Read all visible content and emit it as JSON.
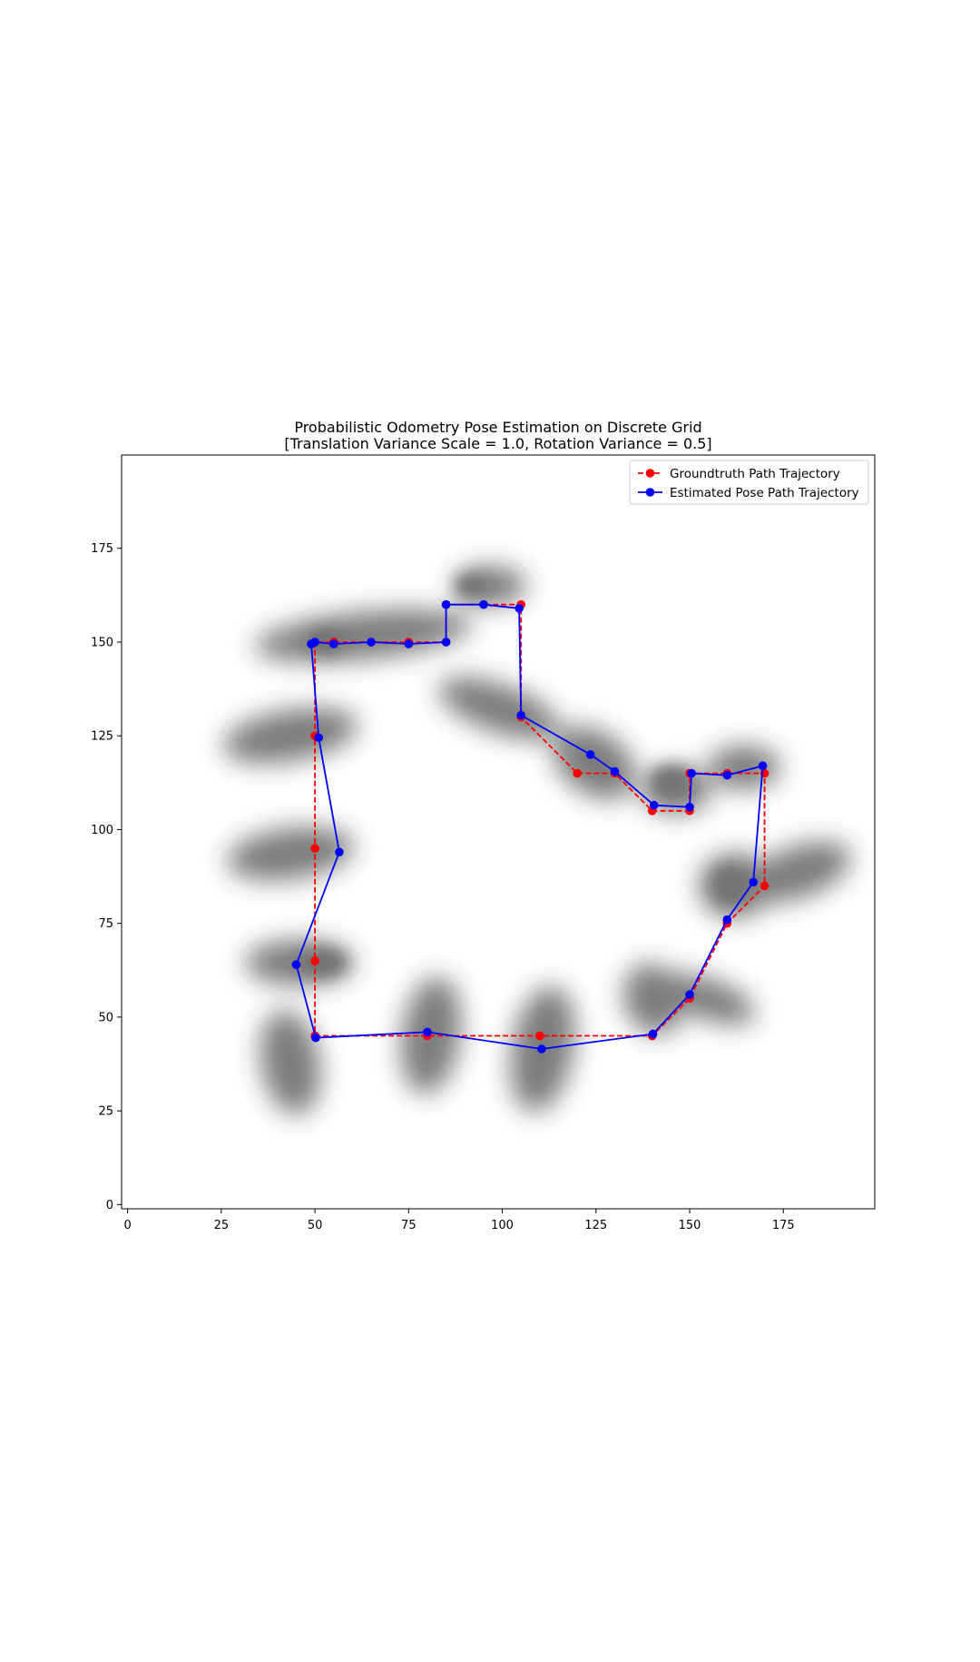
{
  "chart_data": {
    "type": "line",
    "title": "Probabilistic Odometry Pose Estimation on Discrete Grid",
    "subtitle": "[Translation Variance Scale = 1.0, Rotation Variance = 0.5]",
    "xlabel": "",
    "ylabel": "",
    "xlim": [
      -1,
      200
    ],
    "ylim": [
      -1,
      200
    ],
    "xticks": [
      0,
      25,
      50,
      75,
      100,
      125,
      150,
      175
    ],
    "yticks": [
      0,
      25,
      50,
      75,
      100,
      125,
      150,
      175
    ],
    "grid": false,
    "legend_position": "top-right",
    "series": [
      {
        "name": "Groundtruth Path Trajectory",
        "color": "#ff0000",
        "style": "dashed",
        "marker": "circle",
        "x": [
          50,
          80,
          110,
          140,
          150,
          160,
          170,
          170,
          160,
          150,
          150,
          140,
          130,
          120,
          105,
          105,
          85,
          85,
          75,
          65,
          55,
          50,
          50,
          50,
          50,
          50
        ],
        "y": [
          45,
          45,
          45,
          45,
          55,
          75,
          85,
          115,
          115,
          115,
          105,
          105,
          115,
          115,
          130,
          160,
          160,
          150,
          150,
          150,
          150,
          150,
          125,
          95,
          65,
          45
        ]
      },
      {
        "name": "Estimated Pose Path Trajectory",
        "color": "#0000ff",
        "style": "solid",
        "marker": "circle",
        "x": [
          50.2,
          80,
          110.5,
          140.2,
          150,
          160,
          167,
          169.5,
          160,
          150.5,
          150,
          140.5,
          130,
          123.5,
          105,
          104.5,
          95,
          85,
          85,
          75,
          65,
          55,
          50,
          49,
          51,
          56.5,
          45,
          50.2
        ],
        "y": [
          44.5,
          46,
          41.5,
          45.5,
          56,
          76,
          86,
          117,
          114.5,
          115,
          106,
          106.5,
          115.5,
          120,
          130.5,
          159,
          160,
          160,
          150,
          149.5,
          150,
          149.5,
          150,
          149.5,
          124.5,
          94,
          64,
          44.5
        ]
      }
    ],
    "background_density": "grayscale probability heatmap"
  }
}
